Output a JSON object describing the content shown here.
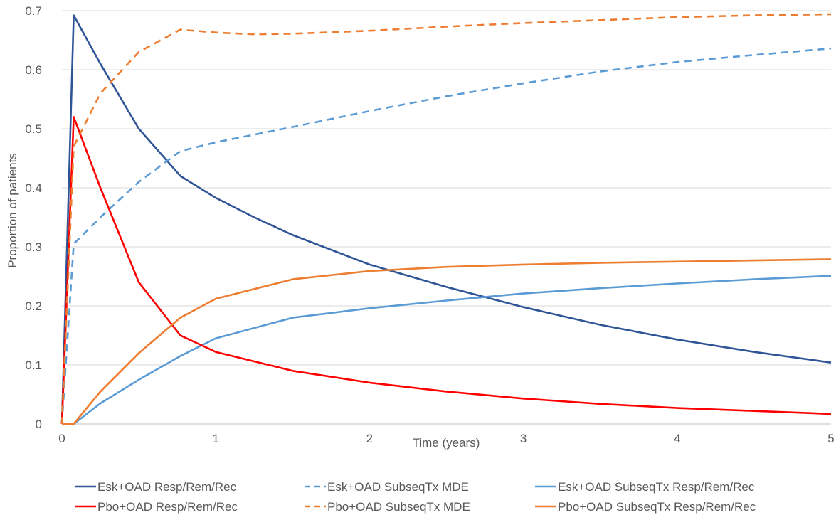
{
  "chart_data": {
    "type": "line",
    "xlabel": "Time (years)",
    "ylabel": "Proportion of patients",
    "xlim": [
      0,
      5
    ],
    "ylim": [
      0,
      0.7
    ],
    "x_ticks": [
      "0",
      "1",
      "2",
      "3",
      "4",
      "5"
    ],
    "y_ticks": [
      "0",
      "0.1",
      "0.2",
      "0.3",
      "0.4",
      "0.5",
      "0.6",
      "0.7"
    ],
    "grid": "horizontal",
    "legend_position": "bottom",
    "series": [
      {
        "name": "Esk+OAD Resp/Rem/Rec",
        "color": "#2f5597",
        "dash": "solid",
        "points": [
          [
            0,
            0
          ],
          [
            0.077,
            0.692
          ],
          [
            0.25,
            0.61
          ],
          [
            0.5,
            0.5
          ],
          [
            0.77,
            0.42
          ],
          [
            1,
            0.383
          ],
          [
            1.25,
            0.35
          ],
          [
            1.5,
            0.32
          ],
          [
            2,
            0.27
          ],
          [
            2.5,
            0.232
          ],
          [
            3,
            0.198
          ],
          [
            3.5,
            0.168
          ],
          [
            4,
            0.143
          ],
          [
            4.5,
            0.122
          ],
          [
            5,
            0.104
          ]
        ]
      },
      {
        "name": "Esk+OAD SubseqTx MDE",
        "color": "#5b9bd5",
        "dash": "dashed",
        "points": [
          [
            0,
            0
          ],
          [
            0.077,
            0.305
          ],
          [
            0.25,
            0.35
          ],
          [
            0.5,
            0.41
          ],
          [
            0.77,
            0.462
          ],
          [
            1,
            0.477
          ],
          [
            1.5,
            0.503
          ],
          [
            2,
            0.53
          ],
          [
            2.5,
            0.555
          ],
          [
            3,
            0.577
          ],
          [
            3.5,
            0.597
          ],
          [
            4,
            0.613
          ],
          [
            4.5,
            0.625
          ],
          [
            5,
            0.636
          ]
        ]
      },
      {
        "name": "Esk+OAD SubseqTx Resp/Rem/Rec",
        "color": "#5b9bd5",
        "dash": "solid",
        "points": [
          [
            0,
            0
          ],
          [
            0.077,
            0
          ],
          [
            0.25,
            0.035
          ],
          [
            0.5,
            0.075
          ],
          [
            0.77,
            0.115
          ],
          [
            1,
            0.145
          ],
          [
            1.5,
            0.18
          ],
          [
            2,
            0.196
          ],
          [
            2.5,
            0.209
          ],
          [
            3,
            0.221
          ],
          [
            3.5,
            0.23
          ],
          [
            4,
            0.238
          ],
          [
            4.5,
            0.245
          ],
          [
            5,
            0.251
          ]
        ]
      },
      {
        "name": "Pbo+OAD Resp/Rem/Rec",
        "color": "#ff0000",
        "dash": "solid",
        "points": [
          [
            0,
            0
          ],
          [
            0.077,
            0.52
          ],
          [
            0.25,
            0.4
          ],
          [
            0.5,
            0.24
          ],
          [
            0.77,
            0.15
          ],
          [
            1,
            0.122
          ],
          [
            1.5,
            0.09
          ],
          [
            2,
            0.07
          ],
          [
            2.5,
            0.055
          ],
          [
            3,
            0.043
          ],
          [
            3.5,
            0.034
          ],
          [
            4,
            0.027
          ],
          [
            4.5,
            0.022
          ],
          [
            5,
            0.017
          ]
        ]
      },
      {
        "name": "Pbo+OAD SubseqTx MDE",
        "color": "#ed7d31",
        "dash": "dashed",
        "points": [
          [
            0,
            0
          ],
          [
            0.077,
            0.47
          ],
          [
            0.25,
            0.56
          ],
          [
            0.5,
            0.63
          ],
          [
            0.77,
            0.668
          ],
          [
            1,
            0.663
          ],
          [
            1.25,
            0.66
          ],
          [
            1.5,
            0.661
          ],
          [
            2,
            0.666
          ],
          [
            2.5,
            0.673
          ],
          [
            3,
            0.679
          ],
          [
            3.5,
            0.684
          ],
          [
            4,
            0.689
          ],
          [
            4.5,
            0.692
          ],
          [
            5,
            0.694
          ]
        ]
      },
      {
        "name": "Pbo+OAD SubseqTx Resp/Rem/Rec",
        "color": "#ed7d31",
        "dash": "solid",
        "points": [
          [
            0,
            0
          ],
          [
            0.077,
            0
          ],
          [
            0.25,
            0.055
          ],
          [
            0.5,
            0.12
          ],
          [
            0.77,
            0.18
          ],
          [
            1,
            0.212
          ],
          [
            1.5,
            0.245
          ],
          [
            2,
            0.259
          ],
          [
            2.5,
            0.266
          ],
          [
            3,
            0.27
          ],
          [
            3.5,
            0.273
          ],
          [
            4,
            0.275
          ],
          [
            4.5,
            0.277
          ],
          [
            5,
            0.279
          ]
        ]
      }
    ]
  }
}
